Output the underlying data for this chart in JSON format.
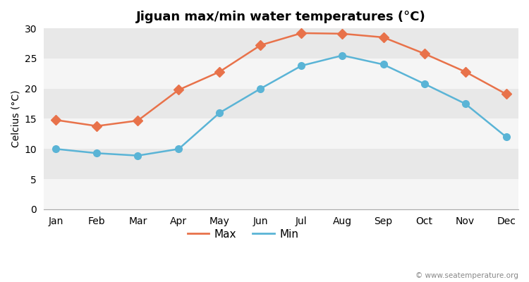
{
  "months": [
    "Jan",
    "Feb",
    "Mar",
    "Apr",
    "May",
    "Jun",
    "Jul",
    "Aug",
    "Sep",
    "Oct",
    "Nov",
    "Dec"
  ],
  "max_temps": [
    14.8,
    13.8,
    14.7,
    19.8,
    22.8,
    27.2,
    29.2,
    29.1,
    28.5,
    25.8,
    22.8,
    19.1
  ],
  "min_temps": [
    10.0,
    9.3,
    8.9,
    10.0,
    16.0,
    20.0,
    23.8,
    25.5,
    24.0,
    20.8,
    17.5,
    12.0
  ],
  "max_color": "#e8724a",
  "min_color": "#5ab4d6",
  "title": "Jiguan max/min water temperatures (°C)",
  "ylabel": "Celcius (°C)",
  "ylim": [
    0,
    30
  ],
  "yticks": [
    0,
    5,
    10,
    15,
    20,
    25,
    30
  ],
  "fig_bg_color": "#ffffff",
  "plot_bg_color": "#e8e8e8",
  "band_color": "#f5f5f5",
  "watermark": "© www.seatemperature.org",
  "legend_labels": [
    "Max",
    "Min"
  ]
}
